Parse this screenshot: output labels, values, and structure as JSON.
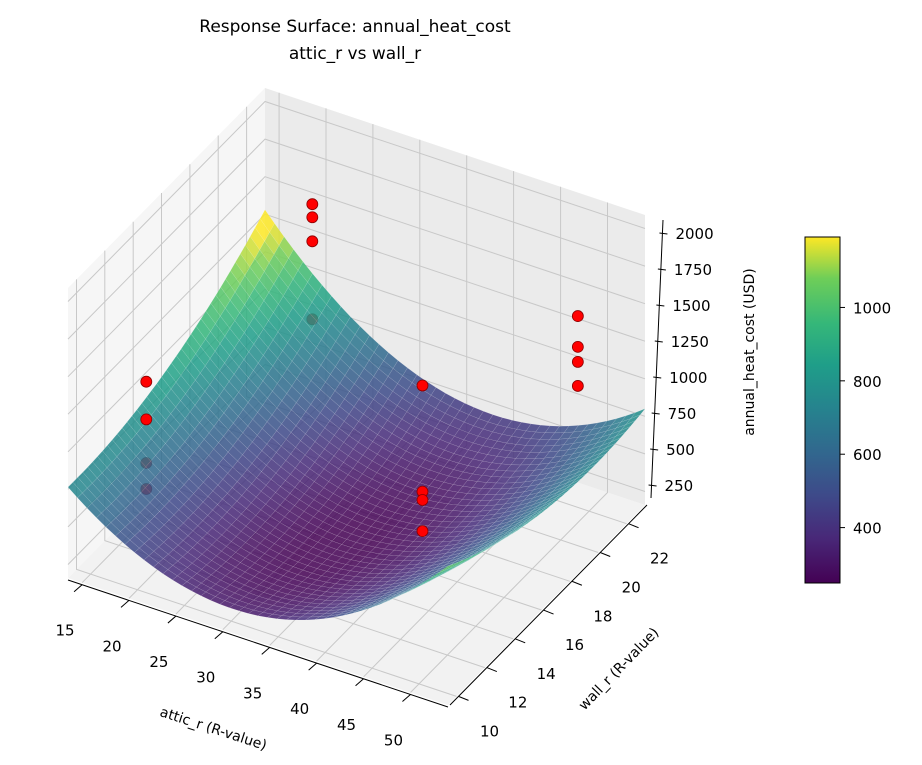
{
  "chart_data": {
    "type": "surface3d",
    "title": "Response Surface: annual_heat_cost",
    "subtitle": "attic_r vs wall_r",
    "xlabel": "attic_r (R-value)",
    "ylabel": "wall_r (R-value)",
    "zlabel": "annual_heat_cost (USD)",
    "xlim": [
      13.5,
      54
    ],
    "ylim": [
      9.4,
      23.3
    ],
    "zlim": [
      160,
      2090
    ],
    "x_ticks": [
      15,
      20,
      25,
      30,
      35,
      40,
      45,
      50
    ],
    "y_ticks": [
      10,
      12,
      14,
      16,
      18,
      20,
      22
    ],
    "z_ticks": [
      250,
      500,
      750,
      1000,
      1250,
      1500,
      1750,
      2000
    ],
    "grid": true,
    "surface": {
      "colormap": "viridis",
      "description_values": {
        "min": 249,
        "max": 1192
      },
      "corner_values": {
        "attic_min_wall_min": 700,
        "attic_max_wall_max": 890,
        "attic_min_wall_max": 1190,
        "attic_max_wall_min": 1150
      }
    },
    "colorbar": {
      "range": [
        249,
        1192
      ],
      "ticks": [
        400,
        600,
        800,
        1000
      ],
      "placement": "right"
    },
    "points": {
      "color": "#ff0000",
      "values": [
        {
          "x": 15.5,
          "y": 13.6,
          "z": 1106
        },
        {
          "x": 15.5,
          "y": 13.6,
          "z": 855
        },
        {
          "x": 15.5,
          "y": 13.6,
          "z": 565
        },
        {
          "x": 15.5,
          "y": 13.6,
          "z": 392
        },
        {
          "x": 19.6,
          "y": 22.6,
          "z": 1511
        },
        {
          "x": 19.6,
          "y": 22.6,
          "z": 1424
        },
        {
          "x": 19.6,
          "y": 22.6,
          "z": 1264
        },
        {
          "x": 19.6,
          "y": 22.6,
          "z": 745
        },
        {
          "x": 39.8,
          "y": 17.0,
          "z": 1262
        },
        {
          "x": 39.8,
          "y": 17.0,
          "z": 556
        },
        {
          "x": 39.8,
          "y": 17.0,
          "z": 500
        },
        {
          "x": 39.8,
          "y": 17.0,
          "z": 293
        },
        {
          "x": 47.9,
          "y": 22.6,
          "z": 1357
        },
        {
          "x": 47.9,
          "y": 22.6,
          "z": 1152
        },
        {
          "x": 47.9,
          "y": 22.6,
          "z": 1052
        },
        {
          "x": 47.9,
          "y": 22.6,
          "z": 892
        }
      ]
    }
  }
}
